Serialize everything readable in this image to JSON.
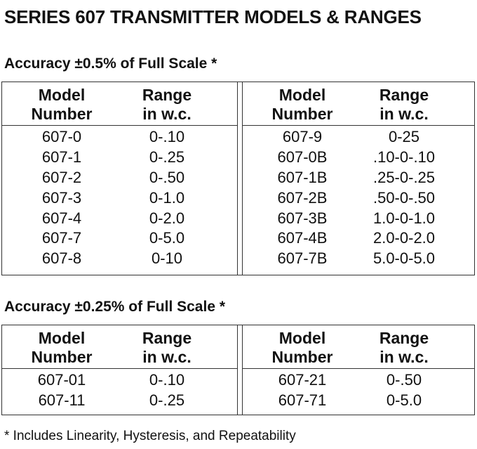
{
  "title": "SERIES 607 TRANSMITTER MODELS & RANGES",
  "headers": {
    "model_line1": "Model",
    "model_line2": "Number",
    "range_line1": "Range",
    "range_line2": "in w.c."
  },
  "sections": [
    {
      "title": "Accuracy ±0.5% of Full Scale *",
      "left_rows": [
        {
          "model": "607-0",
          "range": "0-.10"
        },
        {
          "model": "607-1",
          "range": "0-.25"
        },
        {
          "model": "607-2",
          "range": "0-.50"
        },
        {
          "model": "607-3",
          "range": "0-1.0"
        },
        {
          "model": "607-4",
          "range": "0-2.0"
        },
        {
          "model": "607-7",
          "range": "0-5.0"
        },
        {
          "model": "607-8",
          "range": "0-10"
        }
      ],
      "right_rows": [
        {
          "model": "607-9",
          "range": "0-25"
        },
        {
          "model": "607-0B",
          "range": ".10-0-.10"
        },
        {
          "model": "607-1B",
          "range": ".25-0-.25"
        },
        {
          "model": "607-2B",
          "range": ".50-0-.50"
        },
        {
          "model": "607-3B",
          "range": "1.0-0-1.0"
        },
        {
          "model": "607-4B",
          "range": "2.0-0-2.0"
        },
        {
          "model": "607-7B",
          "range": "5.0-0-5.0"
        }
      ]
    },
    {
      "title": "Accuracy ±0.25% of Full Scale *",
      "left_rows": [
        {
          "model": "607-01",
          "range": "0-.10"
        },
        {
          "model": "607-11",
          "range": "0-.25"
        }
      ],
      "right_rows": [
        {
          "model": "607-21",
          "range": "0-.50"
        },
        {
          "model": "607-71",
          "range": "0-5.0"
        }
      ]
    }
  ],
  "footnote": "* Includes Linearity, Hysteresis, and Repeatability"
}
